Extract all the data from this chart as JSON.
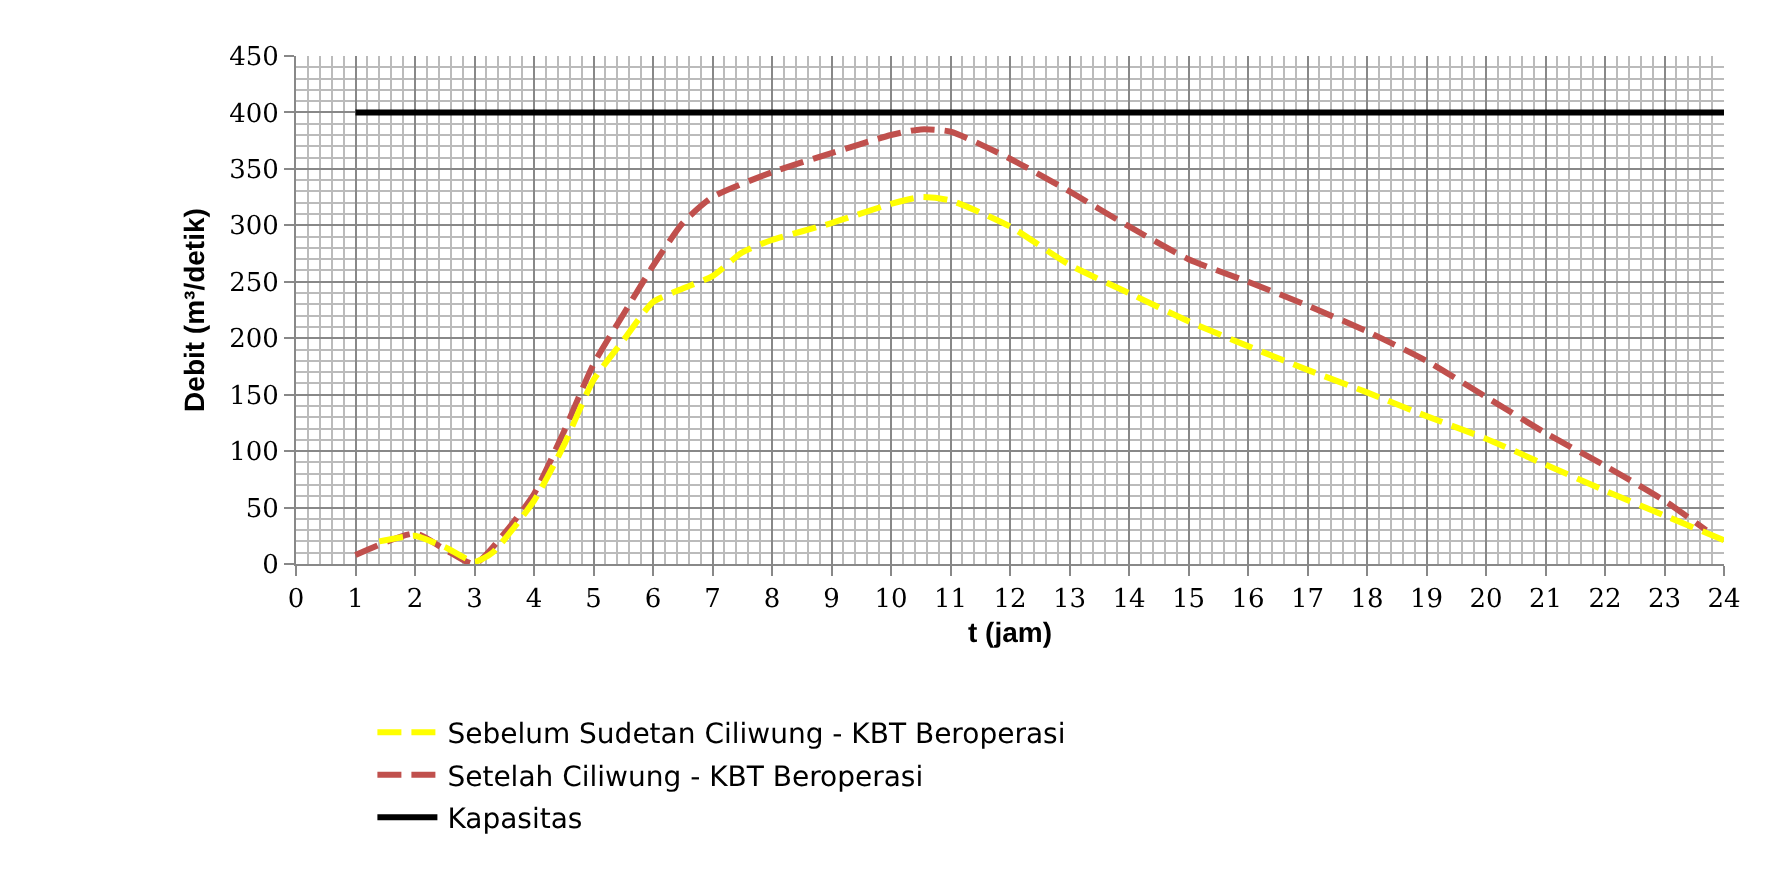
{
  "chart_data": {
    "type": "line",
    "xlabel": "t (jam)",
    "ylabel": "Debit (m³/detik)",
    "xlim": [
      0,
      24
    ],
    "xticks": [
      0,
      1,
      2,
      3,
      4,
      5,
      6,
      7,
      8,
      9,
      10,
      11,
      12,
      13,
      14,
      15,
      16,
      17,
      18,
      19,
      20,
      21,
      22,
      23,
      24
    ],
    "ylim": [
      0,
      450
    ],
    "yticks": [
      0,
      50,
      100,
      150,
      200,
      250,
      300,
      350,
      400,
      450
    ],
    "grid": true,
    "legend": "bottom",
    "marker": "none",
    "series": [
      {
        "name": "Sebelum Sudetan Ciliwung - KBT Beroperasi",
        "color": "#ffff00",
        "line_style": "dashed",
        "x": [
          1.4,
          1.8,
          2,
          2.5,
          3,
          3.3,
          4,
          4.5,
          5,
          5.5,
          6,
          6.5,
          7,
          7.5,
          8,
          9,
          10,
          10.5,
          11,
          12,
          13,
          14,
          15,
          16,
          17,
          18,
          19,
          20,
          21,
          22,
          23,
          24
        ],
        "values": [
          20,
          24,
          25,
          15,
          2,
          10,
          56,
          105,
          163,
          198,
          232,
          244,
          255,
          276,
          287,
          302,
          319,
          325,
          322,
          299,
          265,
          240,
          215,
          193,
          172,
          152,
          131,
          111,
          88,
          65,
          43,
          21
        ]
      },
      {
        "name": "Setelah Ciliwung - KBT Beroperasi",
        "color": "#c0504d",
        "line_style": "dashed",
        "x": [
          1,
          2,
          2.5,
          3,
          3.5,
          4,
          4.5,
          5,
          5.5,
          6,
          6.5,
          7,
          8,
          9,
          10,
          10.5,
          11,
          12,
          13,
          14,
          15,
          16,
          17,
          18,
          19,
          20,
          21,
          22,
          23,
          23.7
        ],
        "values": [
          8,
          27,
          13,
          0,
          27,
          62,
          117,
          177,
          221,
          264,
          302,
          325,
          347,
          364,
          380,
          385,
          383,
          359,
          330,
          299,
          270,
          250,
          229,
          206,
          180,
          148,
          116,
          87,
          56,
          30
        ]
      },
      {
        "name": "Kapasitas",
        "color": "#000000",
        "line_style": "solid",
        "x": [
          1,
          24
        ],
        "values": [
          400,
          400
        ]
      }
    ]
  }
}
